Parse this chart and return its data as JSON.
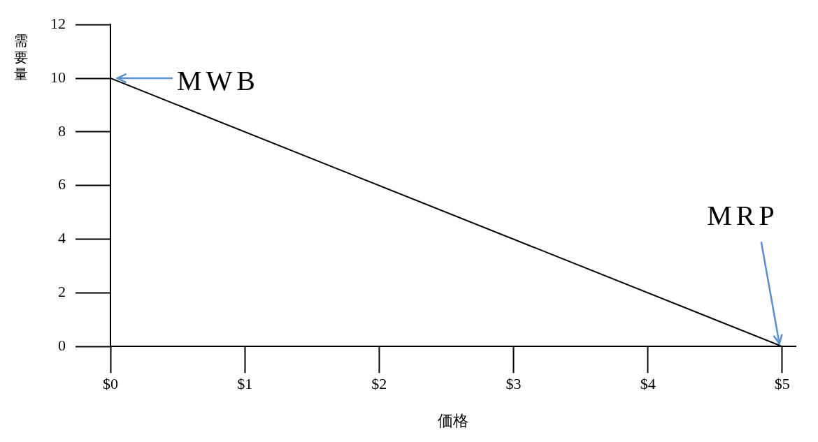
{
  "chart_data": {
    "type": "line",
    "xlabel": "価格",
    "ylabel": "需要量",
    "x": [
      0,
      5
    ],
    "series": [
      {
        "color": "#000000",
        "values": [
          10,
          0
        ]
      }
    ],
    "xlim": [
      0,
      5.1
    ],
    "ylim": [
      0,
      12
    ],
    "xticks": [
      {
        "value": 0,
        "label": "$0"
      },
      {
        "value": 1,
        "label": "$1"
      },
      {
        "value": 2,
        "label": "$2"
      },
      {
        "value": 3,
        "label": "$3"
      },
      {
        "value": 4,
        "label": "$4"
      },
      {
        "value": 5,
        "label": "$5"
      }
    ],
    "yticks": [
      0,
      2,
      4,
      6,
      8,
      10,
      12
    ],
    "annotations": [
      {
        "text": "MWB",
        "x": 0,
        "y": 10
      },
      {
        "text": "MRP",
        "x": 5,
        "y": 0
      }
    ],
    "marker": "none",
    "legend": false
  }
}
